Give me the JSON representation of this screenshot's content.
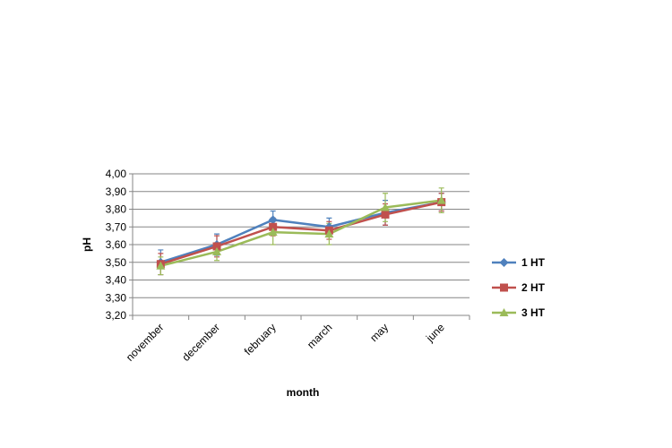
{
  "chart_data": {
    "type": "line",
    "title": "",
    "xlabel": "month",
    "ylabel": "pH",
    "categories": [
      "november",
      "december",
      "february",
      "march",
      "may",
      "june"
    ],
    "ylim": [
      3.2,
      4.0
    ],
    "yticks": [
      "3,20",
      "3,30",
      "3,40",
      "3,50",
      "3,60",
      "3,70",
      "3,80",
      "3,90",
      "4,00"
    ],
    "grid": true,
    "legend_position": "right",
    "series": [
      {
        "name": "1 HT",
        "color": "#4F81BD",
        "marker": "diamond",
        "values": [
          3.5,
          3.6,
          3.74,
          3.7,
          3.78,
          3.84
        ],
        "errors": [
          0.07,
          0.06,
          0.05,
          0.05,
          0.07,
          0.05
        ]
      },
      {
        "name": "2 HT",
        "color": "#C0504D",
        "marker": "square",
        "values": [
          3.49,
          3.59,
          3.7,
          3.68,
          3.77,
          3.84
        ],
        "errors": [
          0.06,
          0.06,
          0.05,
          0.05,
          0.06,
          0.05
        ]
      },
      {
        "name": "3 HT",
        "color": "#9BBB59",
        "marker": "triangle",
        "values": [
          3.48,
          3.56,
          3.67,
          3.66,
          3.81,
          3.85
        ],
        "errors": [
          0.05,
          0.05,
          0.07,
          0.06,
          0.08,
          0.07
        ]
      }
    ]
  }
}
